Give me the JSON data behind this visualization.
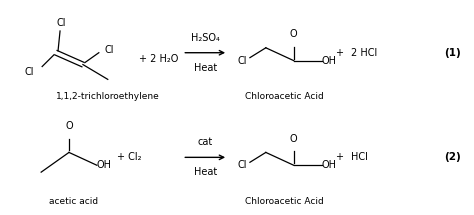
{
  "background_color": "#ffffff",
  "fig_width": 4.74,
  "fig_height": 2.15,
  "dpi": 100,
  "reaction1": {
    "reactant_label": "1,1,2-trichloroethylene",
    "reagent_above": "H₂SO₄",
    "reagent_below": "Heat",
    "plus1": "+ 2 H₂O",
    "product_label": "Chloroacetic Acid",
    "product_right": "+",
    "product_right2": "2 HCl",
    "number": "(1)"
  },
  "reaction2": {
    "reactant_label": "acetic acid",
    "reagent_above": "cat",
    "reagent_below": "Heat",
    "plus1": "+ Cl₂",
    "product_label": "Chloroacetic Acid",
    "product_right": "+",
    "product_right2": "HCl",
    "number": "(2)"
  }
}
